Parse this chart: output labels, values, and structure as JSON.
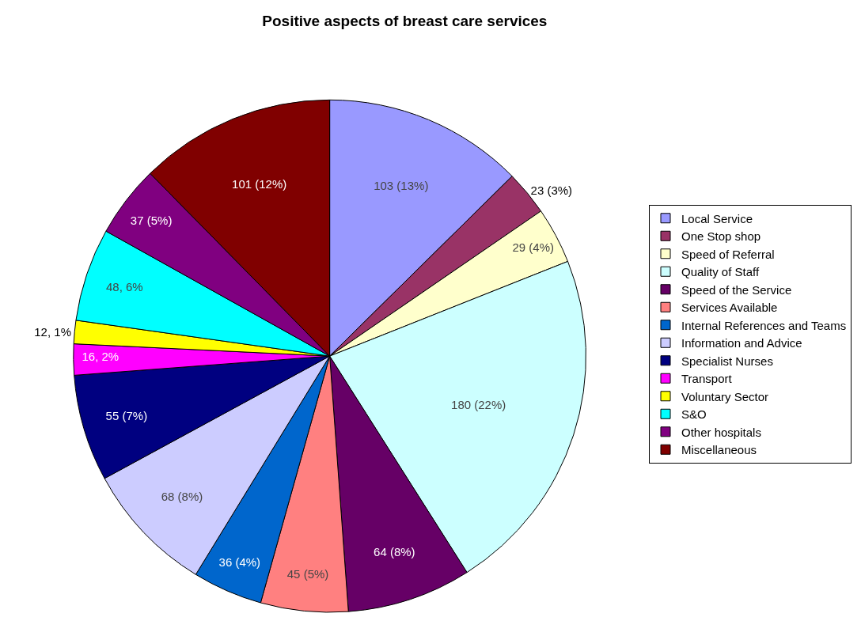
{
  "chart_data": {
    "type": "pie",
    "title": "Positive aspects of breast care services",
    "categories": [
      "Local Service",
      "One Stop shop",
      "Speed of Referral",
      "Quality of Staff",
      "Speed of the Service",
      "Services Available",
      "Internal References and Teams",
      "Information and Advice",
      "Specialist Nurses",
      "Transport",
      "Voluntary Sector",
      "S&O",
      "Other hospitals",
      "Miscellaneous"
    ],
    "values": [
      103,
      23,
      29,
      180,
      64,
      45,
      36,
      68,
      55,
      16,
      12,
      48,
      37,
      101
    ],
    "value_labels": [
      "103 (13%)",
      "23 (3%)",
      "29 (4%)",
      "180 (22%)",
      "64 (8%)",
      "45 (5%)",
      "36 (4%)",
      "68 (8%)",
      "55 (7%)",
      "16, 2%",
      "12, 1%",
      "48, 6%",
      "37 (5%)",
      "101 (12%)"
    ],
    "colors": [
      "#9999ff",
      "#993366",
      "#ffffcc",
      "#ccffff",
      "#660066",
      "#ff8080",
      "#0066cc",
      "#ccccff",
      "#000080",
      "#ff00ff",
      "#ffff00",
      "#00ffff",
      "#800080",
      "#800000"
    ],
    "legend": "right"
  }
}
